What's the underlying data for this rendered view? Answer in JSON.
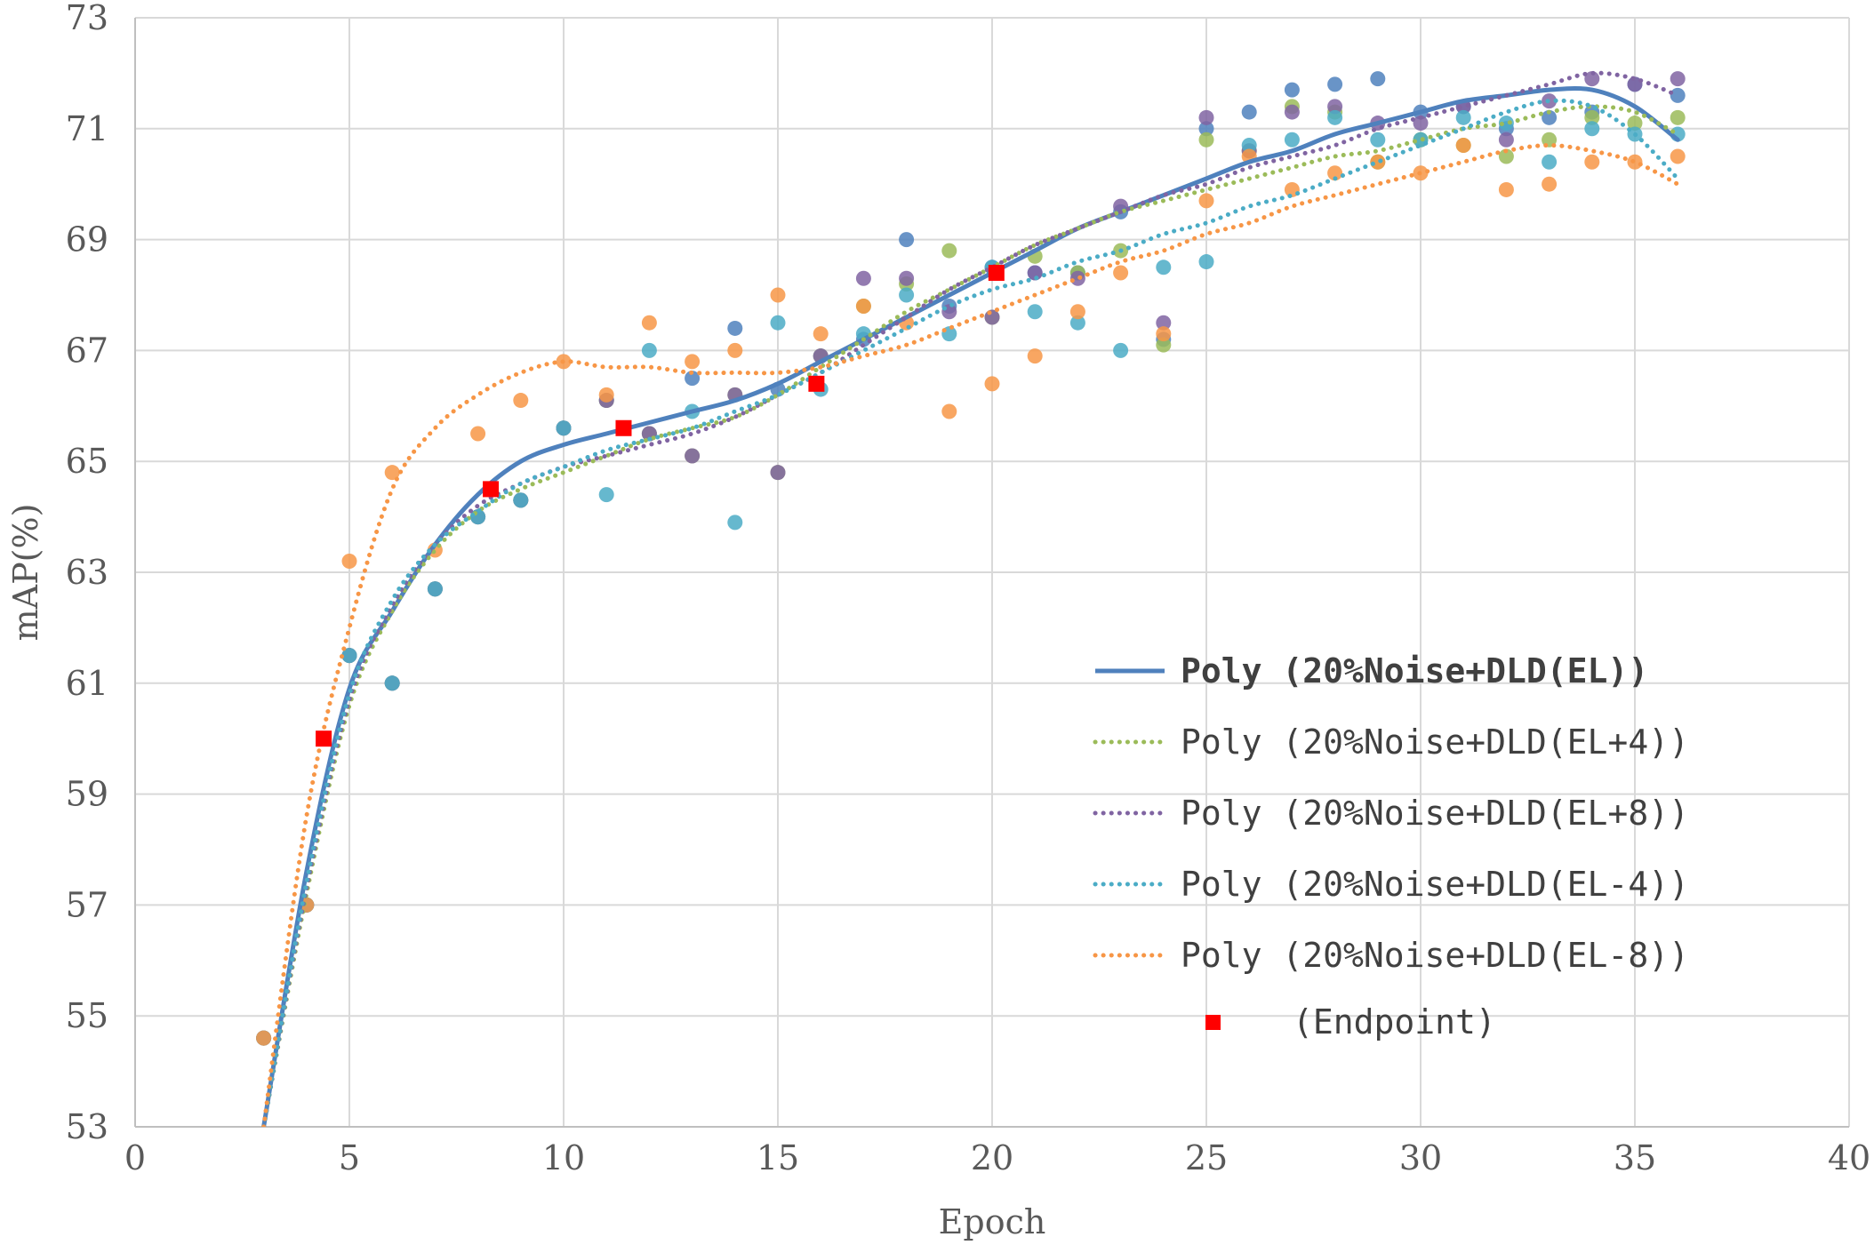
{
  "chart_data": {
    "type": "scatter",
    "xlabel": "Epoch",
    "ylabel": "mAP(%)",
    "xlim": [
      0,
      40
    ],
    "ylim": [
      53,
      73
    ],
    "x_ticks": [
      0,
      5,
      10,
      15,
      20,
      25,
      30,
      35,
      40
    ],
    "y_ticks": [
      53,
      55,
      57,
      59,
      61,
      63,
      65,
      67,
      69,
      71,
      73
    ],
    "grid": true,
    "legend_position": "center-right",
    "series": [
      {
        "name": "Poly (20%Noise+DLD(EL))",
        "color": "#4F81BD",
        "trend_style": "solid",
        "bold": true,
        "x": [
          3,
          4,
          5,
          6,
          7,
          8,
          9,
          10,
          11,
          12,
          13,
          14,
          15,
          16,
          17,
          18,
          19,
          20,
          21,
          22,
          23,
          24,
          25,
          26,
          27,
          28,
          29,
          30,
          31,
          32,
          33,
          34,
          35,
          36
        ],
        "values": [
          54.6,
          57.0,
          61.5,
          61.0,
          62.7,
          64.0,
          64.3,
          65.6,
          66.1,
          65.5,
          66.5,
          67.4,
          66.3,
          66.9,
          67.2,
          69.0,
          67.8,
          68.5,
          68.4,
          68.4,
          69.5,
          67.2,
          71.0,
          71.3,
          71.7,
          71.8,
          71.9,
          71.3,
          71.4,
          71.0,
          71.2,
          71.3,
          71.8,
          71.6
        ],
        "trend": [
          [
            3.0,
            53.0
          ],
          [
            4.0,
            57.6
          ],
          [
            5.0,
            60.9
          ],
          [
            6.0,
            62.3
          ],
          [
            7.0,
            63.5
          ],
          [
            8.0,
            64.4
          ],
          [
            9.0,
            65.0
          ],
          [
            10.0,
            65.3
          ],
          [
            11.0,
            65.5
          ],
          [
            12.0,
            65.7
          ],
          [
            13.0,
            65.9
          ],
          [
            14.0,
            66.1
          ],
          [
            15.0,
            66.4
          ],
          [
            16.0,
            66.8
          ],
          [
            17.0,
            67.2
          ],
          [
            18.0,
            67.6
          ],
          [
            19.0,
            68.0
          ],
          [
            20.0,
            68.4
          ],
          [
            21.0,
            68.8
          ],
          [
            22.0,
            69.2
          ],
          [
            23.0,
            69.5
          ],
          [
            24.0,
            69.8
          ],
          [
            25.0,
            70.1
          ],
          [
            26.0,
            70.4
          ],
          [
            27.0,
            70.6
          ],
          [
            28.0,
            70.9
          ],
          [
            29.0,
            71.1
          ],
          [
            30.0,
            71.3
          ],
          [
            31.0,
            71.5
          ],
          [
            32.0,
            71.6
          ],
          [
            33.0,
            71.7
          ],
          [
            34.0,
            71.7
          ],
          [
            35.0,
            71.4
          ],
          [
            36.0,
            70.8
          ]
        ]
      },
      {
        "name": "Poly (20%Noise+DLD(EL+4))",
        "color": "#9BBB59",
        "trend_style": "dotted",
        "bold": false,
        "x": [
          3,
          4,
          5,
          6,
          7,
          8,
          9,
          10,
          11,
          12,
          13,
          14,
          15,
          16,
          17,
          18,
          19,
          20,
          21,
          22,
          23,
          24,
          25,
          26,
          27,
          28,
          29,
          30,
          31,
          32,
          33,
          34,
          35,
          36
        ],
        "values": [
          54.6,
          57.0,
          61.5,
          61.0,
          62.7,
          64.0,
          64.3,
          65.6,
          66.1,
          65.5,
          65.1,
          66.2,
          64.8,
          66.9,
          67.8,
          68.2,
          68.8,
          67.6,
          68.7,
          68.4,
          68.8,
          67.1,
          70.8,
          70.6,
          71.4,
          71.3,
          70.4,
          70.8,
          70.7,
          70.5,
          70.8,
          71.2,
          71.1,
          71.2
        ],
        "trend": [
          [
            3.0,
            53.0
          ],
          [
            4.0,
            57.2
          ],
          [
            5.0,
            60.6
          ],
          [
            6.0,
            62.3
          ],
          [
            7.0,
            63.4
          ],
          [
            8.0,
            64.1
          ],
          [
            9.0,
            64.5
          ],
          [
            10.0,
            64.8
          ],
          [
            11.0,
            65.1
          ],
          [
            12.0,
            65.4
          ],
          [
            13.0,
            65.6
          ],
          [
            14.0,
            65.8
          ],
          [
            15.0,
            66.2
          ],
          [
            16.0,
            66.7
          ],
          [
            17.0,
            67.2
          ],
          [
            18.0,
            67.7
          ],
          [
            19.0,
            68.1
          ],
          [
            20.0,
            68.5
          ],
          [
            21.0,
            68.9
          ],
          [
            22.0,
            69.2
          ],
          [
            23.0,
            69.5
          ],
          [
            24.0,
            69.7
          ],
          [
            25.0,
            69.9
          ],
          [
            26.0,
            70.1
          ],
          [
            27.0,
            70.3
          ],
          [
            28.0,
            70.5
          ],
          [
            29.0,
            70.6
          ],
          [
            30.0,
            70.8
          ],
          [
            31.0,
            71.0
          ],
          [
            32.0,
            71.1
          ],
          [
            33.0,
            71.3
          ],
          [
            34.0,
            71.4
          ],
          [
            35.0,
            71.3
          ],
          [
            36.0,
            70.9
          ]
        ]
      },
      {
        "name": "Poly (20%Noise+DLD(EL+8))",
        "color": "#8064A2",
        "trend_style": "dotted",
        "bold": false,
        "x": [
          3,
          4,
          5,
          6,
          7,
          8,
          9,
          10,
          11,
          12,
          13,
          14,
          15,
          16,
          17,
          18,
          19,
          20,
          21,
          22,
          23,
          24,
          25,
          26,
          27,
          28,
          29,
          30,
          31,
          32,
          33,
          34,
          35,
          36
        ],
        "values": [
          54.6,
          57.0,
          61.5,
          61.0,
          62.7,
          64.0,
          64.3,
          65.6,
          66.1,
          65.5,
          65.1,
          66.2,
          64.8,
          66.9,
          68.3,
          68.3,
          67.7,
          67.6,
          68.4,
          68.3,
          69.6,
          67.5,
          71.2,
          70.6,
          71.3,
          71.4,
          71.1,
          71.1,
          71.4,
          70.8,
          71.5,
          71.9,
          71.8,
          71.9
        ],
        "trend": [
          [
            3.0,
            53.0
          ],
          [
            4.0,
            57.3
          ],
          [
            5.0,
            60.7
          ],
          [
            6.0,
            62.4
          ],
          [
            7.0,
            63.5
          ],
          [
            8.0,
            64.2
          ],
          [
            9.0,
            64.6
          ],
          [
            10.0,
            64.9
          ],
          [
            11.0,
            65.1
          ],
          [
            12.0,
            65.3
          ],
          [
            13.0,
            65.5
          ],
          [
            14.0,
            65.8
          ],
          [
            15.0,
            66.2
          ],
          [
            16.0,
            66.6
          ],
          [
            17.0,
            67.1
          ],
          [
            18.0,
            67.6
          ],
          [
            19.0,
            68.1
          ],
          [
            20.0,
            68.5
          ],
          [
            21.0,
            68.9
          ],
          [
            22.0,
            69.2
          ],
          [
            23.0,
            69.5
          ],
          [
            24.0,
            69.8
          ],
          [
            25.0,
            70.0
          ],
          [
            26.0,
            70.3
          ],
          [
            27.0,
            70.5
          ],
          [
            28.0,
            70.7
          ],
          [
            29.0,
            71.0
          ],
          [
            30.0,
            71.2
          ],
          [
            31.0,
            71.4
          ],
          [
            32.0,
            71.6
          ],
          [
            33.0,
            71.8
          ],
          [
            34.0,
            72.0
          ],
          [
            35.0,
            71.9
          ],
          [
            36.0,
            71.6
          ]
        ]
      },
      {
        "name": "Poly (20%Noise+DLD(EL-4))",
        "color": "#4BACC6",
        "trend_style": "dotted",
        "bold": false,
        "x": [
          3,
          4,
          5,
          6,
          7,
          8,
          9,
          10,
          11,
          12,
          13,
          14,
          15,
          16,
          17,
          18,
          19,
          20,
          21,
          22,
          23,
          24,
          25,
          26,
          27,
          28,
          29,
          30,
          31,
          32,
          33,
          34,
          35,
          36
        ],
        "values": [
          54.6,
          57.0,
          61.5,
          61.0,
          62.7,
          64.0,
          64.3,
          65.6,
          64.4,
          67.0,
          65.9,
          63.9,
          67.5,
          66.3,
          67.3,
          68.0,
          67.3,
          68.5,
          67.7,
          67.5,
          67.0,
          68.5,
          68.6,
          70.7,
          70.8,
          71.2,
          70.8,
          70.8,
          71.2,
          71.1,
          70.4,
          71.0,
          70.9,
          70.9
        ],
        "trend": [
          [
            3.0,
            53.0
          ],
          [
            4.0,
            57.4
          ],
          [
            5.0,
            60.8
          ],
          [
            6.0,
            62.5
          ],
          [
            7.0,
            63.5
          ],
          [
            8.0,
            64.1
          ],
          [
            9.0,
            64.6
          ],
          [
            10.0,
            64.9
          ],
          [
            11.0,
            65.2
          ],
          [
            12.0,
            65.4
          ],
          [
            13.0,
            65.6
          ],
          [
            14.0,
            65.9
          ],
          [
            15.0,
            66.2
          ],
          [
            16.0,
            66.6
          ],
          [
            17.0,
            67.0
          ],
          [
            18.0,
            67.4
          ],
          [
            19.0,
            67.8
          ],
          [
            20.0,
            68.1
          ],
          [
            21.0,
            68.3
          ],
          [
            22.0,
            68.6
          ],
          [
            23.0,
            68.8
          ],
          [
            24.0,
            69.1
          ],
          [
            25.0,
            69.3
          ],
          [
            26.0,
            69.6
          ],
          [
            27.0,
            69.8
          ],
          [
            28.0,
            70.1
          ],
          [
            29.0,
            70.4
          ],
          [
            30.0,
            70.7
          ],
          [
            31.0,
            71.0
          ],
          [
            32.0,
            71.3
          ],
          [
            33.0,
            71.5
          ],
          [
            34.0,
            71.4
          ],
          [
            35.0,
            70.9
          ],
          [
            36.0,
            70.1
          ]
        ]
      },
      {
        "name": "Poly (20%Noise+DLD(EL-8))",
        "color": "#F79646",
        "trend_style": "dotted",
        "bold": false,
        "x": [
          3,
          4,
          5,
          6,
          7,
          8,
          9,
          10,
          11,
          12,
          13,
          14,
          15,
          16,
          17,
          18,
          19,
          20,
          21,
          22,
          23,
          24,
          25,
          26,
          27,
          28,
          29,
          30,
          31,
          32,
          33,
          34,
          35,
          36
        ],
        "values": [
          54.6,
          57.0,
          63.2,
          64.8,
          63.4,
          65.5,
          66.1,
          66.8,
          66.2,
          67.5,
          66.8,
          67.0,
          68.0,
          67.3,
          67.8,
          67.5,
          65.9,
          66.4,
          66.9,
          67.7,
          68.4,
          67.3,
          69.7,
          70.5,
          69.9,
          70.2,
          70.4,
          70.2,
          70.7,
          69.9,
          70.0,
          70.4,
          70.4,
          70.5
        ],
        "trend": [
          [
            3.0,
            53.0
          ],
          [
            4.0,
            58.6
          ],
          [
            5.0,
            62.0
          ],
          [
            6.0,
            64.5
          ],
          [
            7.0,
            65.6
          ],
          [
            8.0,
            66.2
          ],
          [
            9.0,
            66.6
          ],
          [
            10.0,
            66.8
          ],
          [
            11.0,
            66.7
          ],
          [
            12.0,
            66.7
          ],
          [
            13.0,
            66.6
          ],
          [
            14.0,
            66.6
          ],
          [
            15.0,
            66.6
          ],
          [
            16.0,
            66.7
          ],
          [
            17.0,
            66.9
          ],
          [
            18.0,
            67.1
          ],
          [
            19.0,
            67.4
          ],
          [
            20.0,
            67.7
          ],
          [
            21.0,
            68.0
          ],
          [
            22.0,
            68.3
          ],
          [
            23.0,
            68.6
          ],
          [
            24.0,
            68.8
          ],
          [
            25.0,
            69.1
          ],
          [
            26.0,
            69.3
          ],
          [
            27.0,
            69.6
          ],
          [
            28.0,
            69.8
          ],
          [
            29.0,
            70.0
          ],
          [
            30.0,
            70.2
          ],
          [
            31.0,
            70.4
          ],
          [
            32.0,
            70.6
          ],
          [
            33.0,
            70.7
          ],
          [
            34.0,
            70.6
          ],
          [
            35.0,
            70.4
          ],
          [
            36.0,
            70.0
          ]
        ]
      },
      {
        "name": "(Endpoint)",
        "color": "#FF0000",
        "marker": "square",
        "x": [
          4.4,
          8.3,
          11.4,
          15.9,
          20.1
        ],
        "values": [
          60.0,
          64.5,
          65.6,
          66.4,
          68.4
        ]
      }
    ]
  }
}
